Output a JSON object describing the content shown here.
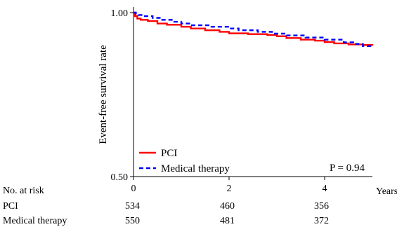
{
  "chart_data": {
    "type": "line",
    "title": "",
    "xlabel": "Years",
    "ylabel": "Event-free survival rate",
    "xlim": [
      0,
      5
    ],
    "ylim": [
      0.5,
      1.0
    ],
    "y_scale": "log",
    "x_ticks": [
      "0",
      "2",
      "4"
    ],
    "y_ticks": [
      "0.50",
      "1.00"
    ],
    "legend_position": "bottom-left",
    "annotation": "P = 0.94",
    "colors": {
      "pci": "#ff0000",
      "medical": "#0000ff"
    },
    "series": [
      {
        "name": "PCI",
        "line_style": "solid",
        "x": [
          0,
          0.03,
          0.08,
          0.15,
          0.3,
          0.5,
          0.7,
          1.0,
          1.2,
          1.5,
          1.8,
          2.0,
          2.4,
          2.8,
          3.0,
          3.2,
          3.5,
          3.8,
          4.0,
          4.2,
          4.5,
          4.8,
          5.0
        ],
        "y": [
          1.0,
          0.985,
          0.975,
          0.97,
          0.965,
          0.955,
          0.95,
          0.942,
          0.935,
          0.928,
          0.922,
          0.916,
          0.913,
          0.91,
          0.905,
          0.898,
          0.892,
          0.888,
          0.883,
          0.878,
          0.874,
          0.872,
          0.87
        ]
      },
      {
        "name": "Medical therapy",
        "line_style": "dashed",
        "x": [
          0,
          0.05,
          0.1,
          0.2,
          0.4,
          0.6,
          0.8,
          1.0,
          1.2,
          1.6,
          2.0,
          2.2,
          2.6,
          2.9,
          3.2,
          3.6,
          4.0,
          4.4,
          4.6,
          4.8,
          5.0
        ],
        "y": [
          1.0,
          0.995,
          0.99,
          0.985,
          0.978,
          0.97,
          0.962,
          0.955,
          0.948,
          0.942,
          0.935,
          0.928,
          0.922,
          0.915,
          0.908,
          0.9,
          0.892,
          0.882,
          0.876,
          0.868,
          0.864
        ]
      }
    ]
  },
  "risk_table": {
    "header": "No. at risk",
    "rows": [
      {
        "label": "PCI",
        "values": [
          "534",
          "460",
          "356"
        ]
      },
      {
        "label": "Medical therapy",
        "values": [
          "550",
          "481",
          "372"
        ]
      }
    ]
  }
}
